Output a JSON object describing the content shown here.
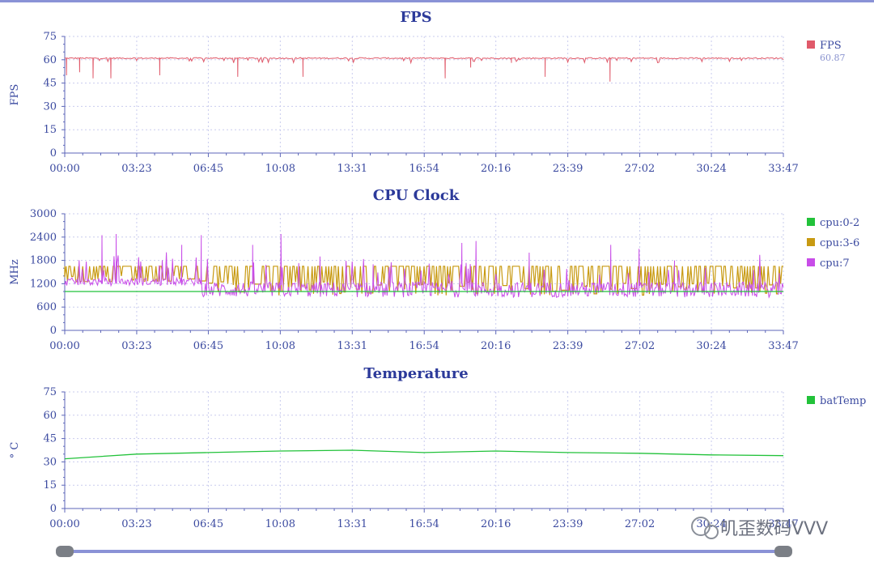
{
  "chart_data": [
    {
      "type": "line",
      "title": "FPS",
      "ylabel": "FPS",
      "ylim": [
        0,
        75
      ],
      "yticks": [
        0,
        15,
        30,
        45,
        60,
        75
      ],
      "xticks": [
        "00:00",
        "03:23",
        "06:45",
        "10:08",
        "13:31",
        "16:54",
        "20:16",
        "23:39",
        "27:02",
        "30:24",
        "33:47"
      ],
      "series": [
        {
          "name": "FPS",
          "color": "#e05a6a",
          "legend_value": "60.87",
          "baseline": 61,
          "dips": [
            {
              "t": "00:05",
              "v": 50
            },
            {
              "t": "00:42",
              "v": 52
            },
            {
              "t": "01:20",
              "v": 48
            },
            {
              "t": "02:10",
              "v": 48
            },
            {
              "t": "04:28",
              "v": 50
            },
            {
              "t": "08:08",
              "v": 49
            },
            {
              "t": "11:12",
              "v": 49
            },
            {
              "t": "17:53",
              "v": 48
            },
            {
              "t": "19:05",
              "v": 55
            },
            {
              "t": "21:00",
              "v": 58
            },
            {
              "t": "22:35",
              "v": 49
            },
            {
              "t": "25:38",
              "v": 46
            }
          ]
        }
      ]
    },
    {
      "type": "line",
      "title": "CPU Clock",
      "ylabel": "MHz",
      "ylim": [
        0,
        3000
      ],
      "yticks": [
        0,
        600,
        1200,
        1800,
        2400,
        3000
      ],
      "xticks": [
        "00:00",
        "03:23",
        "06:45",
        "10:08",
        "13:31",
        "16:54",
        "20:16",
        "23:39",
        "27:02",
        "30:24",
        "33:47"
      ],
      "series": [
        {
          "name": "cpu:0-2",
          "color": "#22c23a",
          "level": 1000
        },
        {
          "name": "cpu:3-6",
          "color": "#c89a12",
          "high": 1650,
          "low": [
            1250,
            900
          ]
        },
        {
          "name": "cpu:7",
          "color": "#c84de8",
          "low": [
            850,
            1300
          ],
          "spikes": [
            {
              "t": "01:45",
              "v": 2450
            },
            {
              "t": "02:25",
              "v": 2480
            },
            {
              "t": "05:30",
              "v": 2200
            },
            {
              "t": "06:25",
              "v": 2450
            },
            {
              "t": "08:50",
              "v": 2200
            },
            {
              "t": "10:10",
              "v": 2480
            },
            {
              "t": "12:00",
              "v": 1900
            },
            {
              "t": "14:30",
              "v": 1700
            },
            {
              "t": "18:40",
              "v": 2250
            },
            {
              "t": "19:20",
              "v": 2300
            },
            {
              "t": "21:50",
              "v": 2000
            },
            {
              "t": "25:40",
              "v": 2200
            },
            {
              "t": "27:00",
              "v": 2100
            },
            {
              "t": "28:40",
              "v": 1800
            }
          ]
        }
      ]
    },
    {
      "type": "line",
      "title": "Temperature",
      "ylabel": "° C",
      "ylim": [
        0,
        75
      ],
      "yticks": [
        0,
        15,
        30,
        45,
        60,
        75
      ],
      "xticks": [
        "00:00",
        "03:23",
        "06:45",
        "10:08",
        "13:31",
        "16:54",
        "20:16",
        "23:39",
        "27:02",
        "30:24",
        "33:47"
      ],
      "series": [
        {
          "name": "batTemp",
          "color": "#22c23a",
          "points": [
            {
              "t": "00:00",
              "v": 32
            },
            {
              "t": "03:23",
              "v": 35
            },
            {
              "t": "06:45",
              "v": 36
            },
            {
              "t": "10:08",
              "v": 37
            },
            {
              "t": "13:31",
              "v": 37.5
            },
            {
              "t": "16:54",
              "v": 36
            },
            {
              "t": "20:16",
              "v": 37
            },
            {
              "t": "23:39",
              "v": 36
            },
            {
              "t": "27:02",
              "v": 35.5
            },
            {
              "t": "30:24",
              "v": 34.5
            },
            {
              "t": "33:47",
              "v": 34
            }
          ]
        }
      ]
    }
  ],
  "slider": {
    "start": 0,
    "end": 1
  },
  "watermark": "叽歪数码VVV"
}
